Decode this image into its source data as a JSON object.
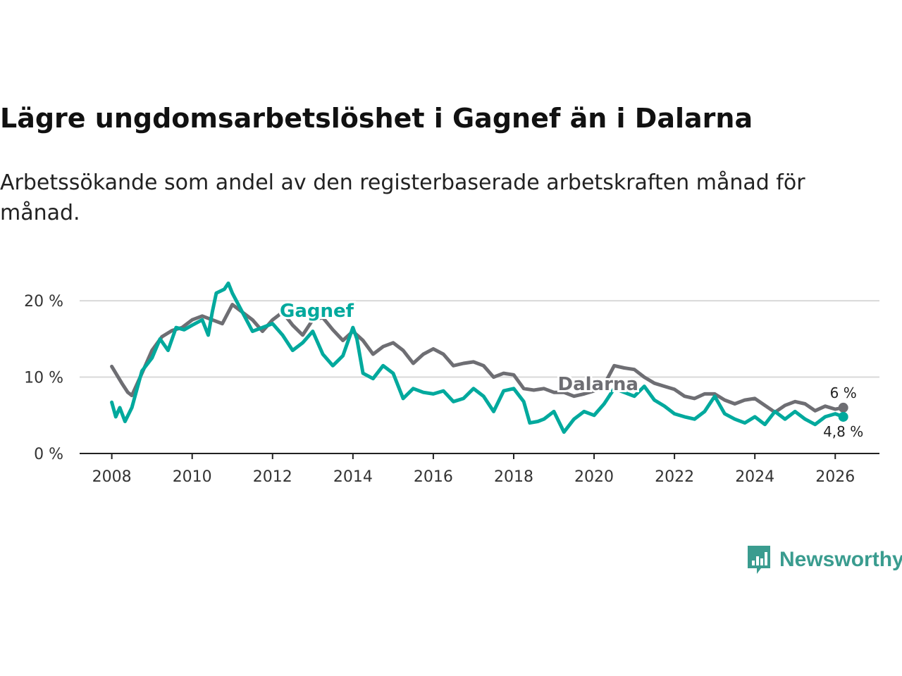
{
  "title": "Lägre ungdomsarbetslöshet i Gagnef än i Dalarna",
  "subtitle": "Arbetssökande som andel av den registerbaserade arbetskraften månad för månad.",
  "brand": {
    "name": "Newsworthy",
    "color": "#3a9c8f"
  },
  "colors": {
    "gagnef": "#00a99d",
    "dalarna": "#6e6e73"
  },
  "chart_data": {
    "type": "line",
    "title": "Lägre ungdomsarbetslöshet i Gagnef än i Dalarna",
    "xlabel": "",
    "ylabel": "",
    "xlim": [
      2007.2,
      2027.1
    ],
    "ylim": [
      0,
      22.5
    ],
    "x_ticks": [
      2008,
      2010,
      2012,
      2014,
      2016,
      2018,
      2020,
      2022,
      2024,
      2026
    ],
    "y_ticks": [
      {
        "value": 0,
        "label": "0 %"
      },
      {
        "value": 10,
        "label": "10 %"
      },
      {
        "value": 20,
        "label": "20 %"
      }
    ],
    "grid": true,
    "series": [
      {
        "name": "Dalarna",
        "label": "Dalarna",
        "color": "#6e6e73",
        "end_label": "6 %",
        "points": [
          [
            2008.0,
            11.4
          ],
          [
            2008.25,
            9.2
          ],
          [
            2008.4,
            8.0
          ],
          [
            2008.5,
            7.6
          ],
          [
            2008.75,
            10.5
          ],
          [
            2009.0,
            13.5
          ],
          [
            2009.25,
            15.3
          ],
          [
            2009.5,
            16.1
          ],
          [
            2009.75,
            16.5
          ],
          [
            2010.0,
            17.5
          ],
          [
            2010.25,
            18.0
          ],
          [
            2010.5,
            17.5
          ],
          [
            2010.75,
            17.0
          ],
          [
            2010.9,
            18.5
          ],
          [
            2011.0,
            19.5
          ],
          [
            2011.25,
            18.5
          ],
          [
            2011.5,
            17.5
          ],
          [
            2011.75,
            16.0
          ],
          [
            2012.0,
            17.5
          ],
          [
            2012.25,
            18.5
          ],
          [
            2012.5,
            16.8
          ],
          [
            2012.75,
            15.5
          ],
          [
            2013.0,
            17.5
          ],
          [
            2013.25,
            17.8
          ],
          [
            2013.5,
            16.2
          ],
          [
            2013.75,
            14.8
          ],
          [
            2014.0,
            16.0
          ],
          [
            2014.25,
            14.8
          ],
          [
            2014.5,
            13.0
          ],
          [
            2014.75,
            14.0
          ],
          [
            2015.0,
            14.5
          ],
          [
            2015.25,
            13.5
          ],
          [
            2015.5,
            11.8
          ],
          [
            2015.75,
            13.0
          ],
          [
            2016.0,
            13.7
          ],
          [
            2016.25,
            13.0
          ],
          [
            2016.5,
            11.5
          ],
          [
            2016.75,
            11.8
          ],
          [
            2017.0,
            12.0
          ],
          [
            2017.25,
            11.5
          ],
          [
            2017.5,
            10.0
          ],
          [
            2017.75,
            10.5
          ],
          [
            2018.0,
            10.3
          ],
          [
            2018.25,
            8.5
          ],
          [
            2018.5,
            8.3
          ],
          [
            2018.75,
            8.5
          ],
          [
            2019.0,
            8.0
          ],
          [
            2019.25,
            8.0
          ],
          [
            2019.5,
            7.5
          ],
          [
            2019.75,
            7.8
          ],
          [
            2020.0,
            8.2
          ],
          [
            2020.25,
            9.0
          ],
          [
            2020.5,
            11.5
          ],
          [
            2020.75,
            11.2
          ],
          [
            2021.0,
            11.0
          ],
          [
            2021.25,
            10.0
          ],
          [
            2021.5,
            9.2
          ],
          [
            2021.75,
            8.8
          ],
          [
            2022.0,
            8.4
          ],
          [
            2022.25,
            7.5
          ],
          [
            2022.5,
            7.2
          ],
          [
            2022.75,
            7.8
          ],
          [
            2023.0,
            7.8
          ],
          [
            2023.25,
            7.0
          ],
          [
            2023.5,
            6.5
          ],
          [
            2023.75,
            7.0
          ],
          [
            2024.0,
            7.2
          ],
          [
            2024.25,
            6.3
          ],
          [
            2024.5,
            5.4
          ],
          [
            2024.75,
            6.3
          ],
          [
            2025.0,
            6.8
          ],
          [
            2025.25,
            6.5
          ],
          [
            2025.5,
            5.6
          ],
          [
            2025.75,
            6.2
          ],
          [
            2026.0,
            5.8
          ],
          [
            2026.2,
            6.0
          ]
        ]
      },
      {
        "name": "Gagnef",
        "label": "Gagnef",
        "color": "#00a99d",
        "end_label": "4,8 %",
        "points": [
          [
            2008.0,
            6.7
          ],
          [
            2008.1,
            4.8
          ],
          [
            2008.2,
            6.0
          ],
          [
            2008.33,
            4.2
          ],
          [
            2008.5,
            6.0
          ],
          [
            2008.75,
            10.8
          ],
          [
            2009.0,
            12.5
          ],
          [
            2009.2,
            15.0
          ],
          [
            2009.4,
            13.5
          ],
          [
            2009.6,
            16.5
          ],
          [
            2009.8,
            16.2
          ],
          [
            2010.0,
            16.8
          ],
          [
            2010.25,
            17.5
          ],
          [
            2010.4,
            15.5
          ],
          [
            2010.5,
            18.5
          ],
          [
            2010.6,
            21.0
          ],
          [
            2010.8,
            21.5
          ],
          [
            2010.9,
            22.3
          ],
          [
            2011.0,
            21.0
          ],
          [
            2011.25,
            18.5
          ],
          [
            2011.5,
            16.0
          ],
          [
            2011.75,
            16.5
          ],
          [
            2012.0,
            17.0
          ],
          [
            2012.25,
            15.5
          ],
          [
            2012.5,
            13.5
          ],
          [
            2012.75,
            14.5
          ],
          [
            2013.0,
            16.0
          ],
          [
            2013.25,
            13.0
          ],
          [
            2013.5,
            11.5
          ],
          [
            2013.75,
            12.8
          ],
          [
            2014.0,
            16.5
          ],
          [
            2014.1,
            15.0
          ],
          [
            2014.25,
            10.5
          ],
          [
            2014.5,
            9.8
          ],
          [
            2014.75,
            11.5
          ],
          [
            2015.0,
            10.5
          ],
          [
            2015.25,
            7.2
          ],
          [
            2015.5,
            8.5
          ],
          [
            2015.75,
            8.0
          ],
          [
            2016.0,
            7.8
          ],
          [
            2016.25,
            8.2
          ],
          [
            2016.5,
            6.8
          ],
          [
            2016.75,
            7.2
          ],
          [
            2017.0,
            8.5
          ],
          [
            2017.25,
            7.5
          ],
          [
            2017.5,
            5.5
          ],
          [
            2017.75,
            8.2
          ],
          [
            2018.0,
            8.5
          ],
          [
            2018.25,
            6.8
          ],
          [
            2018.4,
            4.0
          ],
          [
            2018.6,
            4.2
          ],
          [
            2018.75,
            4.5
          ],
          [
            2019.0,
            5.5
          ],
          [
            2019.25,
            2.8
          ],
          [
            2019.5,
            4.5
          ],
          [
            2019.75,
            5.5
          ],
          [
            2020.0,
            5.0
          ],
          [
            2020.25,
            6.5
          ],
          [
            2020.5,
            8.5
          ],
          [
            2020.75,
            8.0
          ],
          [
            2021.0,
            7.5
          ],
          [
            2021.25,
            8.8
          ],
          [
            2021.5,
            7.0
          ],
          [
            2021.75,
            6.2
          ],
          [
            2022.0,
            5.2
          ],
          [
            2022.25,
            4.8
          ],
          [
            2022.5,
            4.5
          ],
          [
            2022.75,
            5.5
          ],
          [
            2023.0,
            7.5
          ],
          [
            2023.25,
            5.2
          ],
          [
            2023.5,
            4.5
          ],
          [
            2023.75,
            4.0
          ],
          [
            2024.0,
            4.8
          ],
          [
            2024.25,
            3.8
          ],
          [
            2024.5,
            5.5
          ],
          [
            2024.75,
            4.5
          ],
          [
            2025.0,
            5.5
          ],
          [
            2025.25,
            4.5
          ],
          [
            2025.5,
            3.8
          ],
          [
            2025.75,
            4.8
          ],
          [
            2026.0,
            5.2
          ],
          [
            2026.2,
            4.8
          ]
        ]
      }
    ]
  }
}
